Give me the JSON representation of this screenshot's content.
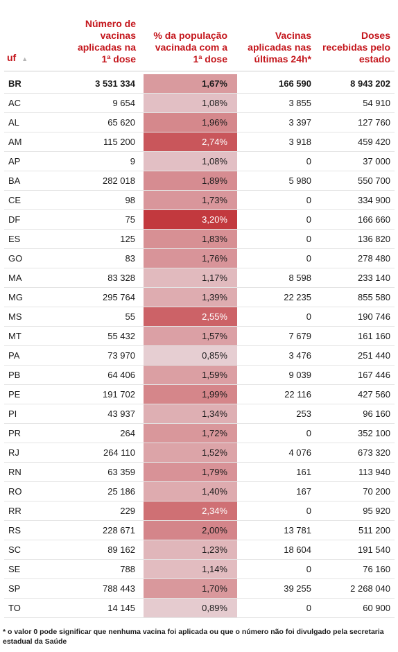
{
  "headers": {
    "uf": "uf",
    "sort_icon": "sort-up-icon",
    "sort_glyph": "▲",
    "n1": "Número de vacinas aplicadas na 1ª dose",
    "pct": "% da população vacinada com a 1ª dose",
    "v24": "Vacinas aplicadas nas últimas 24h*",
    "dr": "Doses recebidas pelo estado"
  },
  "pct_color_scale": {
    "low": "#e6ced2",
    "high": "#c2393e"
  },
  "rows": [
    {
      "uf": "BR",
      "n1": "3 531 334",
      "pct": "1,67%",
      "pct_value": 1.67,
      "v24": "166 590",
      "dr": "8 943 202"
    },
    {
      "uf": "AC",
      "n1": "9 654",
      "pct": "1,08%",
      "pct_value": 1.08,
      "v24": "3 855",
      "dr": "54 910"
    },
    {
      "uf": "AL",
      "n1": "65 620",
      "pct": "1,96%",
      "pct_value": 1.96,
      "v24": "3 397",
      "dr": "127 760"
    },
    {
      "uf": "AM",
      "n1": "115 200",
      "pct": "2,74%",
      "pct_value": 2.74,
      "v24": "3 918",
      "dr": "459 420"
    },
    {
      "uf": "AP",
      "n1": "9",
      "pct": "1,08%",
      "pct_value": 1.08,
      "v24": "0",
      "dr": "37 000"
    },
    {
      "uf": "BA",
      "n1": "282 018",
      "pct": "1,89%",
      "pct_value": 1.89,
      "v24": "5 980",
      "dr": "550 700"
    },
    {
      "uf": "CE",
      "n1": "98",
      "pct": "1,73%",
      "pct_value": 1.73,
      "v24": "0",
      "dr": "334 900"
    },
    {
      "uf": "DF",
      "n1": "75",
      "pct": "3,20%",
      "pct_value": 3.2,
      "v24": "0",
      "dr": "166 660"
    },
    {
      "uf": "ES",
      "n1": "125",
      "pct": "1,83%",
      "pct_value": 1.83,
      "v24": "0",
      "dr": "136 820"
    },
    {
      "uf": "GO",
      "n1": "83",
      "pct": "1,76%",
      "pct_value": 1.76,
      "v24": "0",
      "dr": "278 480"
    },
    {
      "uf": "MA",
      "n1": "83 328",
      "pct": "1,17%",
      "pct_value": 1.17,
      "v24": "8 598",
      "dr": "233 140"
    },
    {
      "uf": "MG",
      "n1": "295 764",
      "pct": "1,39%",
      "pct_value": 1.39,
      "v24": "22 235",
      "dr": "855 580"
    },
    {
      "uf": "MS",
      "n1": "55",
      "pct": "2,55%",
      "pct_value": 2.55,
      "v24": "0",
      "dr": "190 746"
    },
    {
      "uf": "MT",
      "n1": "55 432",
      "pct": "1,57%",
      "pct_value": 1.57,
      "v24": "7 679",
      "dr": "161 160"
    },
    {
      "uf": "PA",
      "n1": "73 970",
      "pct": "0,85%",
      "pct_value": 0.85,
      "v24": "3 476",
      "dr": "251 440"
    },
    {
      "uf": "PB",
      "n1": "64 406",
      "pct": "1,59%",
      "pct_value": 1.59,
      "v24": "9 039",
      "dr": "167 446"
    },
    {
      "uf": "PE",
      "n1": "191 702",
      "pct": "1,99%",
      "pct_value": 1.99,
      "v24": "22 116",
      "dr": "427 560"
    },
    {
      "uf": "PI",
      "n1": "43 937",
      "pct": "1,34%",
      "pct_value": 1.34,
      "v24": "253",
      "dr": "96 160"
    },
    {
      "uf": "PR",
      "n1": "264",
      "pct": "1,72%",
      "pct_value": 1.72,
      "v24": "0",
      "dr": "352 100"
    },
    {
      "uf": "RJ",
      "n1": "264 110",
      "pct": "1,52%",
      "pct_value": 1.52,
      "v24": "4 076",
      "dr": "673 320"
    },
    {
      "uf": "RN",
      "n1": "63 359",
      "pct": "1,79%",
      "pct_value": 1.79,
      "v24": "161",
      "dr": "113 940"
    },
    {
      "uf": "RO",
      "n1": "25 186",
      "pct": "1,40%",
      "pct_value": 1.4,
      "v24": "167",
      "dr": "70 200"
    },
    {
      "uf": "RR",
      "n1": "229",
      "pct": "2,34%",
      "pct_value": 2.34,
      "v24": "0",
      "dr": "95 920"
    },
    {
      "uf": "RS",
      "n1": "228 671",
      "pct": "2,00%",
      "pct_value": 2.0,
      "v24": "13 781",
      "dr": "511 200"
    },
    {
      "uf": "SC",
      "n1": "89 162",
      "pct": "1,23%",
      "pct_value": 1.23,
      "v24": "18 604",
      "dr": "191 540"
    },
    {
      "uf": "SE",
      "n1": "788",
      "pct": "1,14%",
      "pct_value": 1.14,
      "v24": "0",
      "dr": "76 160"
    },
    {
      "uf": "SP",
      "n1": "788 443",
      "pct": "1,70%",
      "pct_value": 1.7,
      "v24": "39 255",
      "dr": "2 268 040"
    },
    {
      "uf": "TO",
      "n1": "14 145",
      "pct": "0,89%",
      "pct_value": 0.89,
      "v24": "0",
      "dr": "60 900"
    }
  ],
  "footnote": "* o valor 0 pode significar que nenhuma vacina foi aplicada ou que o número não foi divulgado pela secretaria estadual da Saúde"
}
